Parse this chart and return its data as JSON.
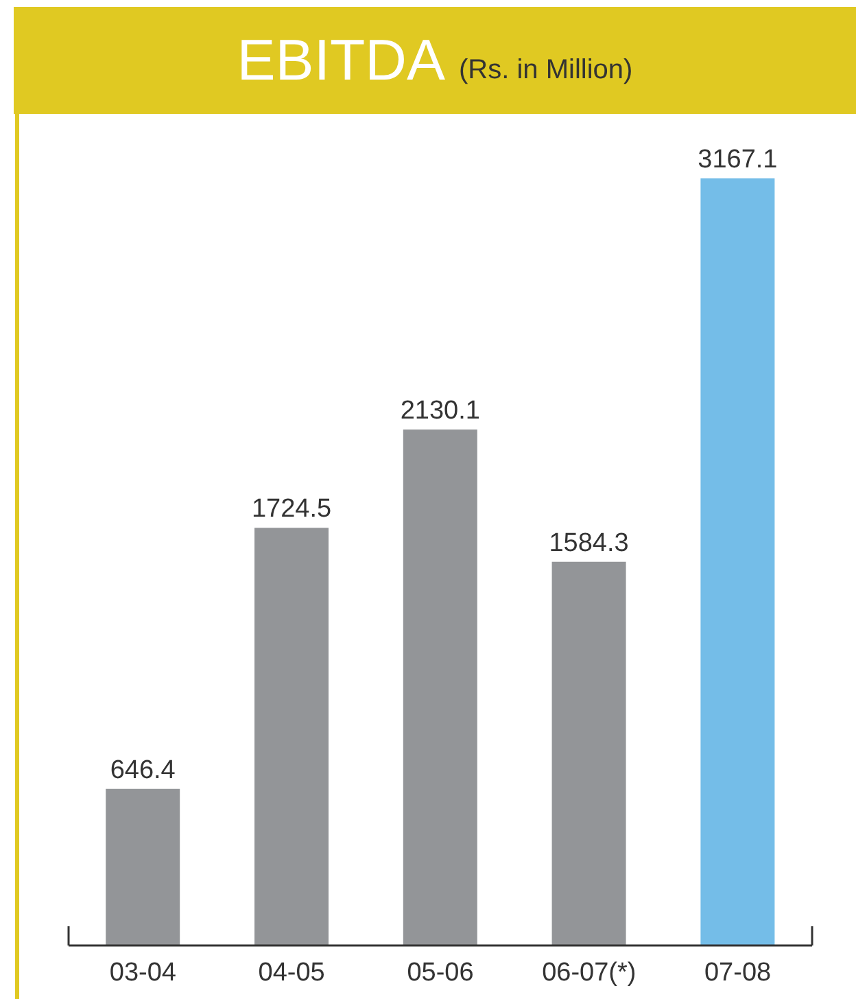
{
  "chart_data": {
    "type": "bar",
    "title": "EBITDA",
    "subtitle": "(Rs. in Million)",
    "categories": [
      "03-04",
      "04-05",
      "05-06",
      "06-07(*)",
      "07-08"
    ],
    "values": [
      646.4,
      1724.5,
      2130.1,
      1584.3,
      3167.1
    ],
    "colors": [
      "#939598",
      "#939598",
      "#939598",
      "#939598",
      "#74bde8"
    ],
    "data_labels": true
  }
}
